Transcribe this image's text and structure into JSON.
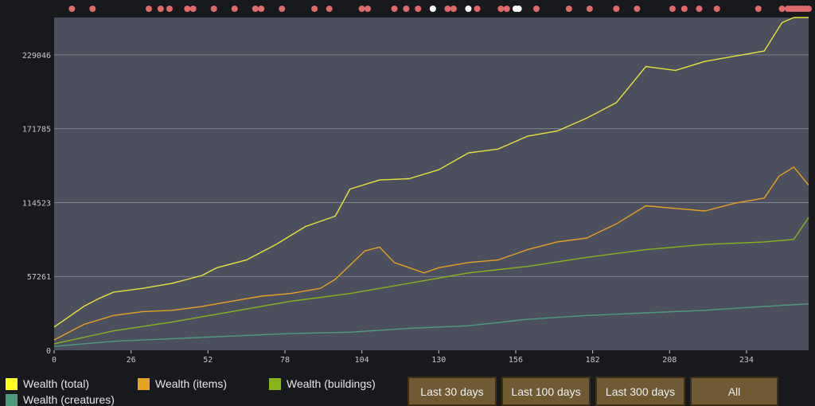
{
  "chart_data": {
    "type": "line",
    "x_range": [
      0,
      255
    ],
    "y_range": [
      0,
      258000
    ],
    "x_ticks": [
      "0",
      "26",
      "52",
      "78",
      "104",
      "130",
      "156",
      "182",
      "208",
      "234"
    ],
    "y_ticks": [
      "0",
      "57261",
      "114523",
      "171785",
      "229046"
    ],
    "grid": true,
    "legend_position": "bottom-left",
    "series": [
      {
        "name": "Wealth (total)",
        "color": "#e8e63a",
        "x": [
          0,
          5,
          10,
          15,
          20,
          30,
          40,
          50,
          55,
          65,
          75,
          85,
          95,
          100,
          110,
          120,
          130,
          140,
          150,
          160,
          170,
          180,
          190,
          200,
          210,
          220,
          230,
          240,
          246,
          250,
          255
        ],
        "y": [
          18000,
          26000,
          34000,
          40000,
          45000,
          48000,
          52000,
          58000,
          64000,
          70000,
          82000,
          96000,
          104000,
          125000,
          132000,
          133000,
          140000,
          153000,
          156000,
          166000,
          170000,
          180000,
          192000,
          220000,
          217000,
          224000,
          228000,
          232000,
          254000,
          258000,
          258000
        ]
      },
      {
        "name": "Wealth (items)",
        "color": "#e8a120",
        "x": [
          0,
          10,
          20,
          30,
          40,
          50,
          60,
          70,
          80,
          90,
          95,
          100,
          105,
          110,
          115,
          125,
          130,
          140,
          150,
          160,
          170,
          180,
          190,
          200,
          210,
          220,
          230,
          240,
          245,
          250,
          255
        ],
        "y": [
          8000,
          20000,
          27000,
          30000,
          31000,
          34000,
          38000,
          42000,
          44000,
          48000,
          55000,
          66000,
          77000,
          80000,
          68000,
          60000,
          64000,
          68000,
          70000,
          78000,
          84000,
          87000,
          98000,
          112000,
          110000,
          108000,
          114000,
          118000,
          135000,
          142000,
          128000
        ]
      },
      {
        "name": "Wealth (buildings)",
        "color": "#88b41c",
        "x": [
          0,
          20,
          40,
          60,
          80,
          100,
          120,
          140,
          160,
          180,
          200,
          220,
          240,
          250,
          255
        ],
        "y": [
          5000,
          15000,
          22000,
          30000,
          38000,
          44000,
          52000,
          60000,
          65000,
          72000,
          78000,
          82000,
          84000,
          86000,
          103000
        ]
      },
      {
        "name": "Wealth (creatures)",
        "color": "#4f9b80",
        "x": [
          0,
          20,
          40,
          60,
          80,
          100,
          120,
          140,
          160,
          180,
          200,
          220,
          240,
          255
        ],
        "y": [
          3000,
          7000,
          9000,
          11000,
          13000,
          14000,
          17000,
          19000,
          24000,
          27000,
          29000,
          31000,
          34000,
          36000
        ]
      }
    ],
    "event_markers": {
      "red_x": [
        6,
        13,
        32,
        36,
        39,
        45,
        47,
        54,
        61,
        68,
        70,
        77,
        88,
        93,
        104,
        106,
        115,
        119,
        123,
        133,
        135,
        143,
        151,
        153,
        163,
        174,
        181,
        190,
        197,
        209,
        213,
        218,
        224,
        238,
        246,
        248,
        249,
        250,
        251,
        252,
        253,
        254,
        255
      ],
      "white_x": [
        128,
        140,
        156,
        157
      ]
    }
  },
  "legend": {
    "total": "Wealth (total)",
    "items": "Wealth (items)",
    "buildings": "Wealth (buildings)",
    "creatures": "Wealth (creatures)"
  },
  "buttons": {
    "last30": "Last 30 days",
    "last100": "Last 100 days",
    "last300": "Last 300 days",
    "all": "All"
  }
}
